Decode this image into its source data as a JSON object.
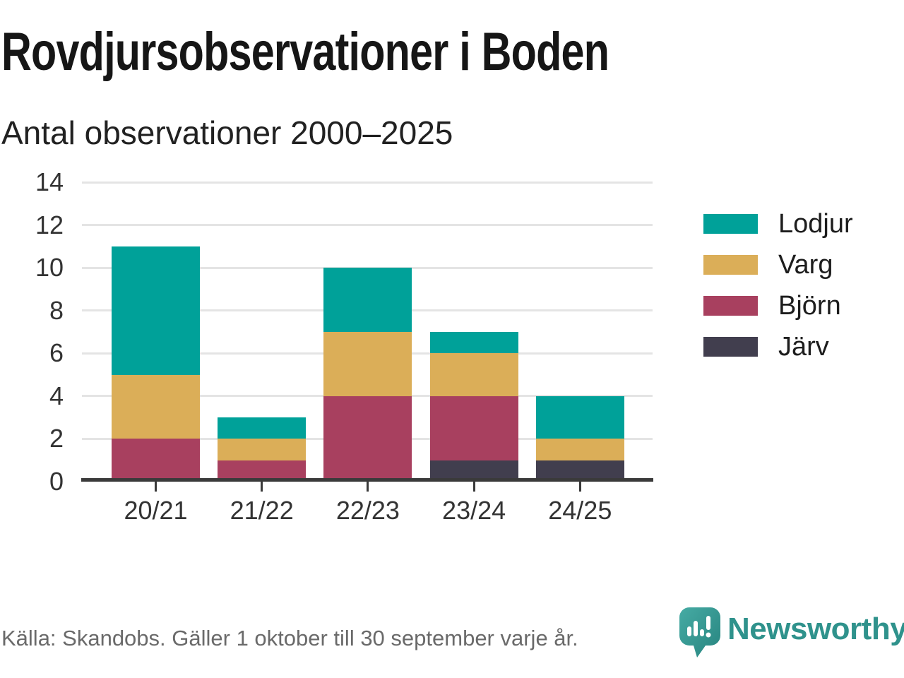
{
  "header": {
    "title": "Rovdjursobservationer i Boden",
    "subtitle": "Antal observationer 2000–2025"
  },
  "chart_data": {
    "type": "bar",
    "stacked": true,
    "title": "Rovdjursobservationer i Boden",
    "subtitle": "Antal observationer 2000–2025",
    "categories": [
      "20/21",
      "21/22",
      "22/23",
      "23/24",
      "24/25"
    ],
    "series": [
      {
        "name": "Lodjur",
        "color": "#00A199",
        "values": [
          6,
          1,
          3,
          1,
          2
        ]
      },
      {
        "name": "Varg",
        "color": "#DBAE58",
        "values": [
          3,
          1,
          3,
          2,
          1
        ]
      },
      {
        "name": "Björn",
        "color": "#A8405F",
        "values": [
          2,
          1,
          4,
          3,
          0
        ]
      },
      {
        "name": "Järv",
        "color": "#413E4E",
        "values": [
          0,
          0,
          0,
          1,
          1
        ]
      }
    ],
    "totals": [
      11,
      3,
      10,
      7,
      4
    ],
    "xlabel": "",
    "ylabel": "",
    "ylim": [
      0,
      14
    ],
    "ytick_step": 2,
    "grid": "horizontal",
    "legend_position": "right"
  },
  "footer": {
    "source": "Källa: Skandobs. Gäller 1 oktober till 30 september varje år.",
    "brand": "Newsworthy"
  },
  "colors": {
    "accent": "#2F928C",
    "grid": "#E4E4E4",
    "axis": "#3A3A3A",
    "title_text": "#161616",
    "tick_text": "#333333",
    "source_text": "#6A6A6A"
  }
}
